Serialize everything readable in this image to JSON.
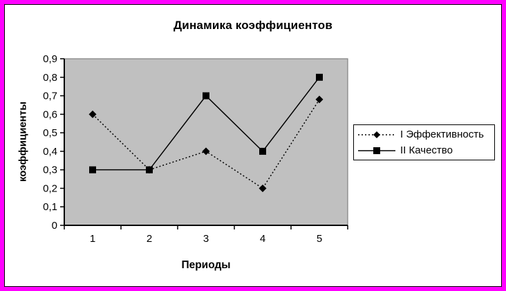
{
  "frame": {
    "border_color": "#FF00FF",
    "inner_border_color": "#000000",
    "background": "#FFFFFF"
  },
  "chart_data": {
    "type": "line",
    "title": "Динамика коэффициентов",
    "xlabel": "Периоды",
    "ylabel": "коэффициенты",
    "categories": [
      "1",
      "2",
      "3",
      "4",
      "5"
    ],
    "series": [
      {
        "name": "I Эффективность",
        "values": [
          0.6,
          0.3,
          0.4,
          0.2,
          0.68
        ],
        "marker": "diamond",
        "line_style": "dotted",
        "color": "#000000"
      },
      {
        "name": "II Качество",
        "values": [
          0.3,
          0.3,
          0.7,
          0.4,
          0.8
        ],
        "marker": "square",
        "line_style": "solid",
        "color": "#000000"
      }
    ],
    "ylim": [
      0,
      0.9
    ],
    "y_tick_step": 0.1,
    "y_tick_labels": [
      "0",
      "0,1",
      "0,2",
      "0,3",
      "0,4",
      "0,5",
      "0,6",
      "0,7",
      "0,8",
      "0,9"
    ],
    "plot_background": "#C0C0C0",
    "plot_border_color": "#808080",
    "axis_color": "#000000",
    "grid": false,
    "legend_position": "right"
  }
}
